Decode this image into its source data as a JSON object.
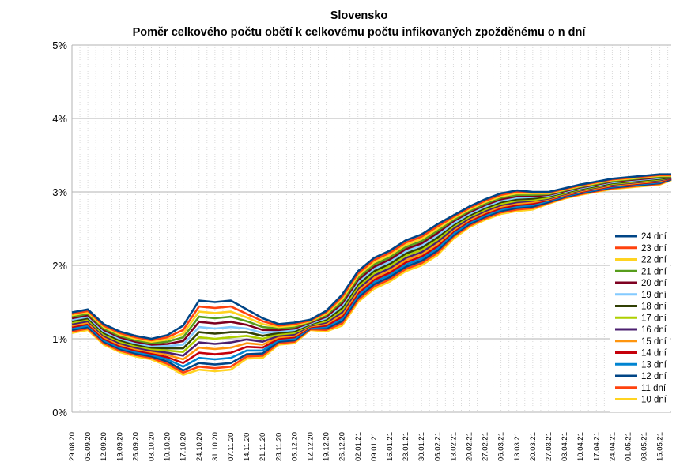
{
  "chart_data": {
    "type": "line",
    "title": "Slovensko",
    "subtitle": "Poměr celkového počtu obětí k celkovému počtu infikovaných zpožděnému o n dní",
    "xlabel": "",
    "ylabel": "",
    "ylim": [
      0,
      5
    ],
    "y_ticks": [
      "0%",
      "1%",
      "2%",
      "3%",
      "4%",
      "5%"
    ],
    "grid": true,
    "legend_position": "right",
    "x_tick_labels": [
      "29.08.20",
      "05.09.20",
      "12.09.20",
      "19.09.20",
      "26.09.20",
      "03.10.20",
      "10.10.20",
      "17.10.20",
      "24.10.20",
      "31.10.20",
      "07.11.20",
      "14.11.20",
      "21.11.20",
      "28.11.20",
      "05.12.20",
      "12.12.20",
      "19.12.20",
      "26.12.20",
      "02.01.21",
      "09.01.21",
      "16.01.21",
      "23.01.21",
      "30.01.21",
      "06.02.21",
      "13.02.21",
      "20.02.21",
      "27.02.21",
      "06.03.21",
      "13.03.21",
      "20.03.21",
      "27.03.21",
      "03.04.21",
      "10.04.21",
      "17.04.21",
      "24.04.21",
      "01.05.21",
      "08.05.21",
      "15.05.21"
    ],
    "x_dates_weekly": [
      "2020-08-29",
      "2020-09-05",
      "2020-09-12",
      "2020-09-19",
      "2020-09-26",
      "2020-10-03",
      "2020-10-10",
      "2020-10-17",
      "2020-10-24",
      "2020-10-31",
      "2020-11-07",
      "2020-11-14",
      "2020-11-21",
      "2020-11-28",
      "2020-12-05",
      "2020-12-12",
      "2020-12-19",
      "2020-12-26",
      "2021-01-02",
      "2021-01-09",
      "2021-01-16",
      "2021-01-23",
      "2021-01-30",
      "2021-02-06",
      "2021-02-13",
      "2021-02-20",
      "2021-02-27",
      "2021-03-06",
      "2021-03-13",
      "2021-03-20",
      "2021-03-27",
      "2021-04-03",
      "2021-04-10",
      "2021-04-17",
      "2021-04-24",
      "2021-05-01",
      "2021-05-08",
      "2021-05-15",
      "2021-05-20"
    ],
    "series": [
      {
        "name": "24 dní",
        "color": "#004586",
        "values": [
          1.36,
          1.4,
          1.2,
          1.1,
          1.04,
          1.0,
          1.05,
          1.18,
          1.52,
          1.5,
          1.52,
          1.4,
          1.28,
          1.2,
          1.22,
          1.26,
          1.38,
          1.6,
          1.92,
          2.1,
          2.2,
          2.34,
          2.42,
          2.56,
          2.68,
          2.8,
          2.9,
          2.98,
          3.02,
          3.0,
          3.0,
          3.05,
          3.1,
          3.14,
          3.18,
          3.2,
          3.22,
          3.24,
          3.24
        ]
      },
      {
        "name": "23 dní",
        "color": "#ff420e",
        "values": [
          1.34,
          1.38,
          1.18,
          1.08,
          1.02,
          0.98,
          1.02,
          1.12,
          1.44,
          1.42,
          1.44,
          1.34,
          1.24,
          1.18,
          1.2,
          1.25,
          1.36,
          1.57,
          1.89,
          2.07,
          2.17,
          2.31,
          2.39,
          2.53,
          2.66,
          2.78,
          2.88,
          2.96,
          3.0,
          2.99,
          2.99,
          3.04,
          3.09,
          3.13,
          3.17,
          3.19,
          3.21,
          3.23,
          3.23
        ]
      },
      {
        "name": "22 dní",
        "color": "#ffd320",
        "values": [
          1.32,
          1.36,
          1.16,
          1.06,
          1.0,
          0.96,
          0.99,
          1.07,
          1.37,
          1.35,
          1.37,
          1.29,
          1.2,
          1.16,
          1.18,
          1.24,
          1.34,
          1.54,
          1.86,
          2.04,
          2.14,
          2.28,
          2.36,
          2.5,
          2.64,
          2.76,
          2.86,
          2.94,
          2.98,
          2.98,
          2.98,
          3.03,
          3.08,
          3.12,
          3.16,
          3.18,
          3.2,
          3.22,
          3.22
        ]
      },
      {
        "name": "21 dní",
        "color": "#579d1c",
        "values": [
          1.3,
          1.34,
          1.14,
          1.04,
          0.98,
          0.94,
          0.96,
          1.02,
          1.3,
          1.28,
          1.3,
          1.24,
          1.16,
          1.14,
          1.16,
          1.23,
          1.32,
          1.51,
          1.83,
          2.01,
          2.11,
          2.25,
          2.33,
          2.47,
          2.62,
          2.74,
          2.84,
          2.92,
          2.96,
          2.96,
          2.97,
          3.02,
          3.07,
          3.11,
          3.15,
          3.17,
          3.19,
          3.21,
          3.21
        ]
      },
      {
        "name": "20 dní",
        "color": "#7e0021",
        "values": [
          1.28,
          1.32,
          1.12,
          1.02,
          0.96,
          0.92,
          0.93,
          0.97,
          1.23,
          1.21,
          1.23,
          1.19,
          1.12,
          1.12,
          1.14,
          1.22,
          1.3,
          1.48,
          1.8,
          1.98,
          2.08,
          2.22,
          2.3,
          2.44,
          2.6,
          2.72,
          2.82,
          2.9,
          2.94,
          2.94,
          2.96,
          3.01,
          3.06,
          3.1,
          3.14,
          3.16,
          3.18,
          3.2,
          3.21
        ]
      },
      {
        "name": "19 dní",
        "color": "#83caff",
        "values": [
          1.26,
          1.3,
          1.1,
          1.0,
          0.94,
          0.9,
          0.9,
          0.92,
          1.16,
          1.14,
          1.16,
          1.14,
          1.08,
          1.1,
          1.12,
          1.21,
          1.28,
          1.45,
          1.77,
          1.95,
          2.05,
          2.19,
          2.27,
          2.41,
          2.57,
          2.7,
          2.8,
          2.88,
          2.92,
          2.93,
          2.95,
          3.0,
          3.05,
          3.09,
          3.13,
          3.15,
          3.17,
          3.19,
          3.21
        ]
      },
      {
        "name": "18 dní",
        "color": "#314004",
        "values": [
          1.24,
          1.28,
          1.08,
          0.98,
          0.92,
          0.88,
          0.87,
          0.87,
          1.09,
          1.07,
          1.09,
          1.09,
          1.04,
          1.08,
          1.1,
          1.2,
          1.26,
          1.42,
          1.74,
          1.92,
          2.02,
          2.16,
          2.24,
          2.38,
          2.55,
          2.68,
          2.78,
          2.86,
          2.9,
          2.91,
          2.94,
          2.99,
          3.04,
          3.08,
          3.12,
          3.14,
          3.16,
          3.18,
          3.2
        ]
      },
      {
        "name": "17 dní",
        "color": "#aecf00",
        "values": [
          1.22,
          1.26,
          1.06,
          0.96,
          0.9,
          0.86,
          0.84,
          0.82,
          1.02,
          1.0,
          1.02,
          1.04,
          1.0,
          1.06,
          1.08,
          1.19,
          1.24,
          1.39,
          1.71,
          1.89,
          1.99,
          2.13,
          2.21,
          2.35,
          2.53,
          2.66,
          2.76,
          2.84,
          2.88,
          2.89,
          2.92,
          2.98,
          3.03,
          3.07,
          3.11,
          3.13,
          3.15,
          3.17,
          3.2
        ]
      },
      {
        "name": "16 dní",
        "color": "#4b1f6f",
        "values": [
          1.2,
          1.24,
          1.04,
          0.94,
          0.88,
          0.84,
          0.81,
          0.77,
          0.95,
          0.93,
          0.95,
          0.99,
          0.96,
          1.04,
          1.06,
          1.18,
          1.22,
          1.36,
          1.68,
          1.86,
          1.96,
          2.1,
          2.18,
          2.32,
          2.5,
          2.64,
          2.74,
          2.82,
          2.86,
          2.88,
          2.91,
          2.97,
          3.02,
          3.06,
          3.1,
          3.12,
          3.14,
          3.16,
          3.19
        ]
      },
      {
        "name": "15 dní",
        "color": "#ff950e",
        "values": [
          1.18,
          1.22,
          1.02,
          0.92,
          0.86,
          0.82,
          0.78,
          0.72,
          0.88,
          0.86,
          0.88,
          0.94,
          0.92,
          1.02,
          1.04,
          1.17,
          1.2,
          1.33,
          1.65,
          1.83,
          1.93,
          2.07,
          2.15,
          2.29,
          2.48,
          2.62,
          2.72,
          2.8,
          2.84,
          2.86,
          2.9,
          2.96,
          3.01,
          3.05,
          3.09,
          3.11,
          3.13,
          3.15,
          3.19
        ]
      },
      {
        "name": "14 dní",
        "color": "#c5000b",
        "values": [
          1.16,
          1.2,
          1.0,
          0.9,
          0.84,
          0.8,
          0.75,
          0.67,
          0.81,
          0.79,
          0.81,
          0.89,
          0.88,
          1.0,
          1.02,
          1.16,
          1.18,
          1.3,
          1.62,
          1.8,
          1.9,
          2.04,
          2.12,
          2.26,
          2.46,
          2.6,
          2.7,
          2.78,
          2.82,
          2.84,
          2.89,
          2.95,
          3.0,
          3.04,
          3.08,
          3.1,
          3.12,
          3.14,
          3.18
        ]
      },
      {
        "name": "13 dní",
        "color": "#0084d1",
        "values": [
          1.14,
          1.18,
          0.98,
          0.88,
          0.82,
          0.78,
          0.72,
          0.62,
          0.74,
          0.72,
          0.74,
          0.84,
          0.84,
          0.98,
          1.0,
          1.15,
          1.16,
          1.27,
          1.59,
          1.77,
          1.87,
          2.01,
          2.09,
          2.23,
          2.43,
          2.58,
          2.68,
          2.76,
          2.8,
          2.82,
          2.88,
          2.94,
          2.99,
          3.03,
          3.07,
          3.09,
          3.11,
          3.13,
          3.18
        ]
      },
      {
        "name": "12 dní",
        "color": "#004586",
        "values": [
          1.12,
          1.16,
          0.96,
          0.86,
          0.8,
          0.76,
          0.69,
          0.57,
          0.67,
          0.65,
          0.67,
          0.79,
          0.8,
          0.96,
          0.98,
          1.14,
          1.14,
          1.24,
          1.56,
          1.74,
          1.84,
          1.98,
          2.06,
          2.2,
          2.41,
          2.56,
          2.66,
          2.74,
          2.78,
          2.8,
          2.86,
          2.93,
          2.98,
          3.02,
          3.06,
          3.08,
          3.1,
          3.12,
          3.17
        ]
      },
      {
        "name": "11 dní",
        "color": "#ff420e",
        "values": [
          1.1,
          1.14,
          0.94,
          0.84,
          0.78,
          0.74,
          0.66,
          0.54,
          0.62,
          0.6,
          0.62,
          0.76,
          0.77,
          0.94,
          0.96,
          1.13,
          1.12,
          1.21,
          1.53,
          1.71,
          1.81,
          1.95,
          2.03,
          2.17,
          2.39,
          2.54,
          2.64,
          2.72,
          2.76,
          2.78,
          2.85,
          2.92,
          2.97,
          3.01,
          3.05,
          3.07,
          3.09,
          3.11,
          3.17
        ]
      },
      {
        "name": "10 dní",
        "color": "#ffd320",
        "values": [
          1.08,
          1.12,
          0.92,
          0.82,
          0.76,
          0.72,
          0.63,
          0.51,
          0.58,
          0.56,
          0.58,
          0.73,
          0.74,
          0.92,
          0.94,
          1.12,
          1.1,
          1.18,
          1.5,
          1.68,
          1.78,
          1.92,
          2.0,
          2.14,
          2.36,
          2.52,
          2.62,
          2.7,
          2.74,
          2.76,
          2.84,
          2.91,
          2.96,
          3.0,
          3.04,
          3.06,
          3.08,
          3.1,
          3.16
        ]
      }
    ]
  }
}
